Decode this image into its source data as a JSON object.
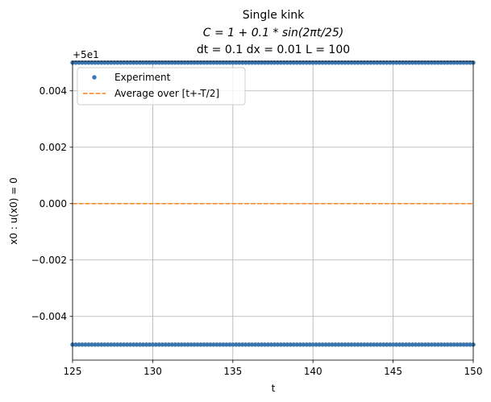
{
  "chart_data": {
    "type": "scatter",
    "title_lines": [
      "Single kink",
      "C = 1 + 0.1 * sin(2πt/25)",
      "dt = 0.1 dx = 0.01 L = 100"
    ],
    "xlabel": "t",
    "ylabel": "x0 : u(x0) = 0",
    "xlim": [
      125,
      150
    ],
    "ylim": [
      -0.00555,
      0.00505
    ],
    "y_offset_label": "+5e1",
    "x_ticks": [
      125,
      130,
      135,
      140,
      145,
      150
    ],
    "x_tick_labels": [
      "125",
      "130",
      "135",
      "140",
      "145",
      "150"
    ],
    "y_ticks": [
      -0.004,
      -0.002,
      0.0,
      0.002,
      0.004
    ],
    "y_tick_labels": [
      "−0.004",
      "−0.002",
      "0.000",
      "0.002",
      "0.004"
    ],
    "grid": true,
    "legend_position": "top-left",
    "colors": {
      "experiment": "#3a75af",
      "average": "#ff7f0e",
      "grid": "#b0b0b0"
    },
    "series": [
      {
        "name": "Experiment",
        "kind": "points",
        "x_start": 125.0,
        "x_end": 150.0,
        "x_step": 0.2,
        "y_levels": [
          0.005,
          -0.005
        ]
      },
      {
        "name": "Average over [t+-T/2]",
        "kind": "dashed-line",
        "x": [
          125,
          150
        ],
        "y": [
          0.0,
          0.0
        ]
      }
    ]
  }
}
